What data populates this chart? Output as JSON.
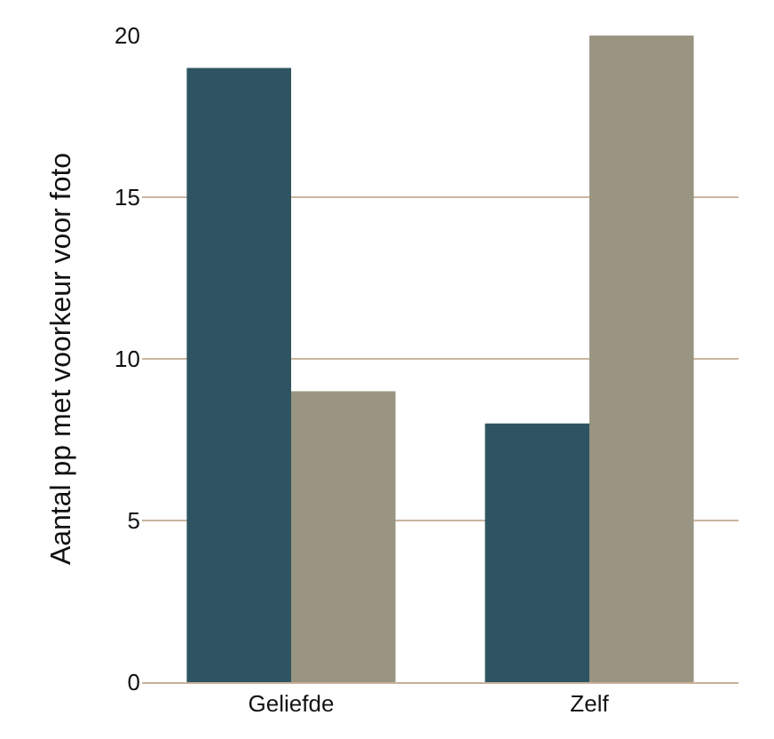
{
  "chart_data": {
    "type": "bar",
    "ylabel": "Aantal pp met voorkeur voor foto",
    "categories": [
      "Geliefde",
      "Zelf"
    ],
    "series": [
      {
        "color": "#2e5461",
        "values": [
          19,
          8
        ]
      },
      {
        "color": "#9a9582",
        "values": [
          9,
          20
        ]
      }
    ],
    "ylim": [
      0,
      20
    ],
    "yticks": [
      0,
      5,
      10,
      15,
      20
    ],
    "grid": "y"
  }
}
